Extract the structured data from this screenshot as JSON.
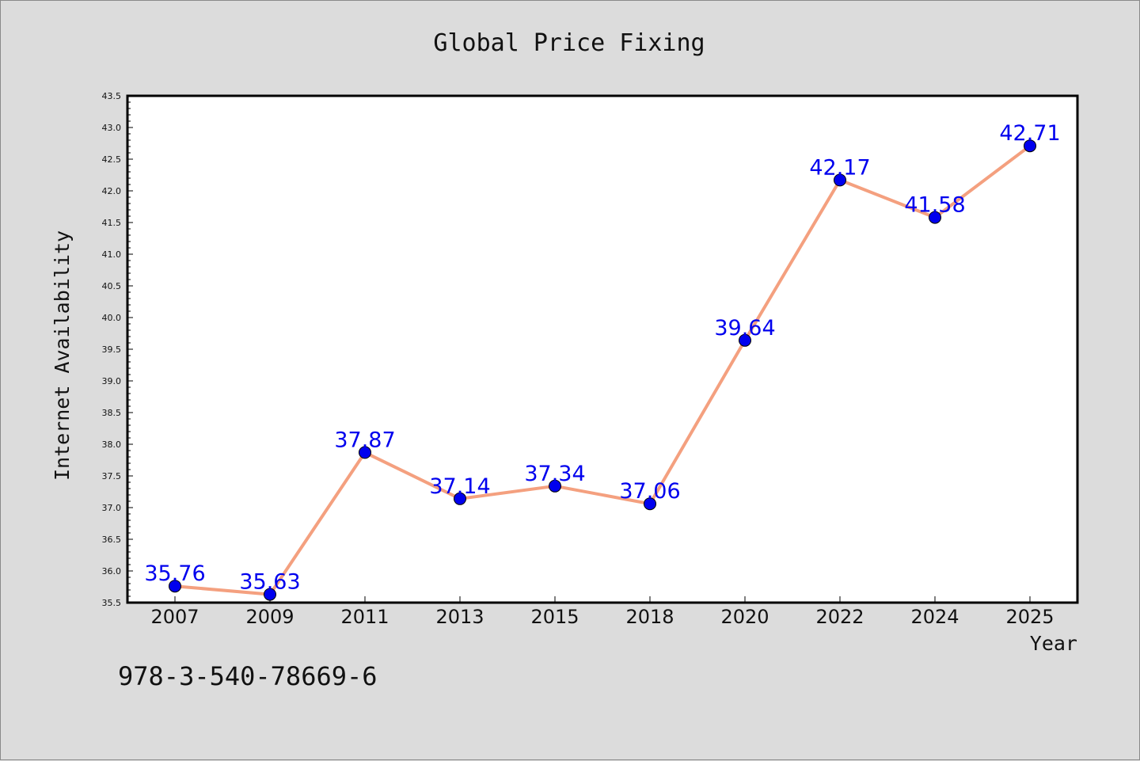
{
  "chart_data": {
    "type": "line",
    "title": "Global Price Fixing",
    "xlabel": "Year",
    "ylabel": "Internet Availability",
    "categories": [
      "2007",
      "2009",
      "2011",
      "2013",
      "2015",
      "2018",
      "2020",
      "2022",
      "2024",
      "2025"
    ],
    "series": [
      {
        "values": [
          35.76,
          35.63,
          37.87,
          37.14,
          37.34,
          37.06,
          39.64,
          42.17,
          41.58,
          42.71
        ],
        "data_labels": [
          "35.76",
          "35.63",
          "37.87",
          "37.14",
          "37.34",
          "37.06",
          "39.64",
          "42.17",
          "41.58",
          "42.71"
        ]
      }
    ],
    "ylim": [
      35.5,
      43.5
    ],
    "yticks": [
      "35.5",
      "36.0",
      "36.5",
      "37.0",
      "37.5",
      "38.0",
      "38.5",
      "39.0",
      "39.5",
      "40.0",
      "40.5",
      "41.0",
      "41.5",
      "42.0",
      "42.5",
      "43.0",
      "43.5"
    ],
    "grid": false,
    "legend": "none"
  },
  "annotation": "978-3-540-78669-6",
  "colors": {
    "line": "#f4a07f",
    "marker": "#0000ee",
    "label": "#0000ee",
    "background": "#dcdcdc",
    "plot_background": "#ffffff"
  }
}
